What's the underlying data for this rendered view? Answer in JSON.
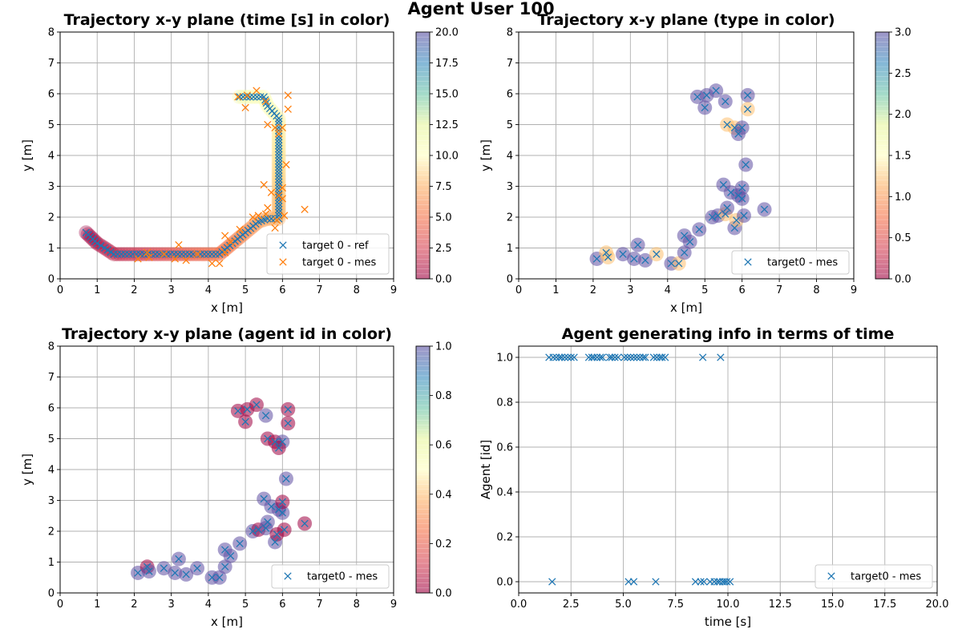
{
  "figure": {
    "suptitle": "Agent User 100"
  },
  "chart_data": [
    {
      "id": "time",
      "type": "scatter",
      "title": "Trajectory x-y plane  (time [s] in color)",
      "xlabel": "x [m]",
      "ylabel": "y [m]",
      "xlim": [
        0,
        9
      ],
      "ylim": [
        0,
        8
      ],
      "xticks": [
        "0",
        "1",
        "2",
        "3",
        "4",
        "5",
        "6",
        "7",
        "8",
        "9"
      ],
      "yticks": [
        "0",
        "1",
        "2",
        "3",
        "4",
        "5",
        "6",
        "7",
        "8"
      ],
      "grid": true,
      "legend": {
        "placement": "lower-right",
        "entries": [
          {
            "label": "target 0 - ref",
            "color": "#1f77b4"
          },
          {
            "label": "target 0 - mes",
            "color": "#ff7f0e"
          }
        ]
      },
      "colorbar": {
        "min": 0,
        "max": 20,
        "ticks": [
          "0.0",
          "2.5",
          "5.0",
          "7.5",
          "10.0",
          "12.5",
          "15.0",
          "17.5",
          "20.0"
        ]
      },
      "ref_path": [
        [
          0.7,
          1.5
        ],
        [
          1.0,
          1.15
        ],
        [
          1.2,
          1.0
        ],
        [
          1.45,
          0.8
        ],
        [
          4.3,
          0.8
        ],
        [
          5.35,
          1.85
        ],
        [
          5.6,
          1.95
        ],
        [
          5.9,
          1.95
        ],
        [
          5.9,
          5.2
        ],
        [
          5.6,
          5.6
        ],
        [
          5.5,
          5.9
        ],
        [
          4.75,
          5.9
        ]
      ],
      "series": [
        {
          "name": "target 0 - ref",
          "color": "#1f77b4"
        },
        {
          "name": "target 0 - mes",
          "color": "#ff7f0e",
          "points": [
            [
              2.1,
              0.65
            ],
            [
              2.35,
              0.85
            ],
            [
              2.4,
              0.7
            ],
            [
              2.8,
              0.8
            ],
            [
              3.1,
              0.65
            ],
            [
              3.2,
              1.1
            ],
            [
              3.4,
              0.6
            ],
            [
              3.7,
              0.8
            ],
            [
              4.1,
              0.5
            ],
            [
              4.3,
              0.5
            ],
            [
              4.45,
              1.4
            ],
            [
              4.45,
              0.85
            ],
            [
              4.6,
              1.2
            ],
            [
              4.85,
              1.6
            ],
            [
              5.2,
              2.0
            ],
            [
              5.35,
              2.05
            ],
            [
              5.5,
              3.05
            ],
            [
              5.55,
              2.1
            ],
            [
              5.6,
              2.3
            ],
            [
              5.7,
              2.8
            ],
            [
              5.8,
              1.65
            ],
            [
              5.85,
              1.9
            ],
            [
              5.9,
              2.7
            ],
            [
              6.0,
              2.6
            ],
            [
              6.0,
              2.95
            ],
            [
              6.05,
              2.05
            ],
            [
              6.1,
              3.7
            ],
            [
              6.6,
              2.25
            ],
            [
              4.8,
              5.9
            ],
            [
              5.0,
              5.55
            ],
            [
              5.05,
              5.95
            ],
            [
              5.3,
              6.1
            ],
            [
              5.6,
              5.0
            ],
            [
              5.8,
              4.9
            ],
            [
              6.0,
              4.9
            ],
            [
              5.9,
              4.7
            ],
            [
              6.15,
              5.95
            ],
            [
              6.15,
              5.5
            ],
            [
              5.55,
              5.75
            ]
          ]
        }
      ]
    },
    {
      "id": "type",
      "type": "scatter",
      "title": "Trajectory x-y plane (type in color)",
      "xlabel": "x [m]",
      "ylabel": "y [m]",
      "xlim": [
        0,
        9
      ],
      "ylim": [
        0,
        8
      ],
      "xticks": [
        "0",
        "1",
        "2",
        "3",
        "4",
        "5",
        "6",
        "7",
        "8",
        "9"
      ],
      "yticks": [
        "0",
        "1",
        "2",
        "3",
        "4",
        "5",
        "6",
        "7",
        "8"
      ],
      "grid": true,
      "legend": {
        "placement": "lower-right",
        "entries": [
          {
            "label": "target0 - mes",
            "color": "#1f77b4"
          }
        ]
      },
      "colorbar": {
        "min": 0,
        "max": 3,
        "ticks": [
          "0.0",
          "0.5",
          "1.0",
          "1.5",
          "2.0",
          "2.5",
          "3.0"
        ]
      },
      "series": [
        {
          "name": "target0 - mes",
          "color": "#1f77b4",
          "points": [
            [
              2.1,
              0.65,
              3
            ],
            [
              2.35,
              0.85,
              1
            ],
            [
              2.4,
              0.7,
              1
            ],
            [
              2.8,
              0.8,
              3
            ],
            [
              3.1,
              0.65,
              3
            ],
            [
              3.2,
              1.1,
              3
            ],
            [
              3.4,
              0.6,
              3
            ],
            [
              3.7,
              0.8,
              1
            ],
            [
              4.1,
              0.5,
              3
            ],
            [
              4.3,
              0.5,
              1
            ],
            [
              4.45,
              1.4,
              3
            ],
            [
              4.45,
              0.85,
              3
            ],
            [
              4.6,
              1.2,
              3
            ],
            [
              4.85,
              1.6,
              3
            ],
            [
              5.2,
              2.0,
              3
            ],
            [
              5.35,
              2.05,
              3
            ],
            [
              5.5,
              3.05,
              3
            ],
            [
              5.55,
              2.1,
              1
            ],
            [
              5.6,
              2.3,
              3
            ],
            [
              5.7,
              2.8,
              3
            ],
            [
              5.8,
              1.65,
              3
            ],
            [
              5.85,
              1.9,
              1
            ],
            [
              5.9,
              2.7,
              3
            ],
            [
              6.0,
              2.6,
              3
            ],
            [
              6.0,
              2.95,
              3
            ],
            [
              6.05,
              2.05,
              3
            ],
            [
              6.1,
              3.7,
              3
            ],
            [
              6.6,
              2.25,
              3
            ],
            [
              4.8,
              5.9,
              3
            ],
            [
              5.0,
              5.55,
              3
            ],
            [
              5.05,
              5.95,
              3
            ],
            [
              5.3,
              6.1,
              3
            ],
            [
              5.6,
              5.0,
              1
            ],
            [
              5.8,
              4.9,
              1
            ],
            [
              6.0,
              4.9,
              3
            ],
            [
              5.9,
              4.7,
              3
            ],
            [
              6.15,
              5.95,
              3
            ],
            [
              6.15,
              5.5,
              1
            ],
            [
              5.55,
              5.75,
              3
            ]
          ]
        }
      ]
    },
    {
      "id": "agent",
      "type": "scatter",
      "title": "Trajectory x-y plane (agent id in color)",
      "xlabel": "x [m]",
      "ylabel": "y [m]",
      "xlim": [
        0,
        9
      ],
      "ylim": [
        0,
        8
      ],
      "xticks": [
        "0",
        "1",
        "2",
        "3",
        "4",
        "5",
        "6",
        "7",
        "8",
        "9"
      ],
      "yticks": [
        "0",
        "1",
        "2",
        "3",
        "4",
        "5",
        "6",
        "7",
        "8"
      ],
      "grid": true,
      "legend": {
        "placement": "lower-right",
        "entries": [
          {
            "label": "target0 - mes",
            "color": "#1f77b4"
          }
        ]
      },
      "colorbar": {
        "min": 0,
        "max": 1,
        "ticks": [
          "0.0",
          "0.2",
          "0.4",
          "0.6",
          "0.8",
          "1.0"
        ]
      },
      "series": [
        {
          "name": "target0 - mes",
          "color": "#1f77b4",
          "points": [
            [
              2.1,
              0.65,
              1
            ],
            [
              2.35,
              0.85,
              0
            ],
            [
              2.4,
              0.7,
              1
            ],
            [
              2.8,
              0.8,
              1
            ],
            [
              3.1,
              0.65,
              1
            ],
            [
              3.2,
              1.1,
              1
            ],
            [
              3.4,
              0.6,
              1
            ],
            [
              3.7,
              0.8,
              1
            ],
            [
              4.1,
              0.5,
              1
            ],
            [
              4.3,
              0.5,
              1
            ],
            [
              4.45,
              1.4,
              1
            ],
            [
              4.45,
              0.85,
              1
            ],
            [
              4.6,
              1.2,
              1
            ],
            [
              4.85,
              1.6,
              1
            ],
            [
              5.2,
              2.0,
              1
            ],
            [
              5.35,
              2.05,
              0
            ],
            [
              5.5,
              3.05,
              1
            ],
            [
              5.55,
              2.1,
              1
            ],
            [
              5.6,
              2.3,
              1
            ],
            [
              5.7,
              2.8,
              1
            ],
            [
              5.8,
              1.65,
              1
            ],
            [
              5.85,
              1.9,
              0
            ],
            [
              5.9,
              2.7,
              1
            ],
            [
              6.0,
              2.6,
              1
            ],
            [
              6.0,
              2.95,
              0
            ],
            [
              6.05,
              2.05,
              0
            ],
            [
              6.1,
              3.7,
              1
            ],
            [
              6.6,
              2.25,
              0
            ],
            [
              4.8,
              5.9,
              0
            ],
            [
              5.0,
              5.55,
              0
            ],
            [
              5.05,
              5.95,
              0
            ],
            [
              5.3,
              6.1,
              0
            ],
            [
              5.6,
              5.0,
              0
            ],
            [
              5.8,
              4.9,
              0
            ],
            [
              6.0,
              4.9,
              1
            ],
            [
              5.9,
              4.7,
              0
            ],
            [
              6.15,
              5.95,
              0
            ],
            [
              6.15,
              5.5,
              0
            ],
            [
              5.55,
              5.75,
              1
            ]
          ]
        }
      ]
    },
    {
      "id": "agent_time",
      "type": "scatter",
      "title": "Agent generating info in terms of time",
      "xlabel": "time [s]",
      "ylabel": "Agent [id]",
      "xlim": [
        0,
        20
      ],
      "ylim": [
        -0.05,
        1.05
      ],
      "xticks": [
        "0.0",
        "2.5",
        "5.0",
        "7.5",
        "10.0",
        "12.5",
        "15.0",
        "17.5",
        "20.0"
      ],
      "yticks": [
        "0.0",
        "0.2",
        "0.4",
        "0.6",
        "0.8",
        "1.0"
      ],
      "grid": true,
      "legend": {
        "placement": "lower-right",
        "entries": [
          {
            "label": "target0 - mes",
            "color": "#1f77b4"
          }
        ]
      },
      "series": [
        {
          "name": "target0 - mes",
          "color": "#1f77b4",
          "points": [
            [
              1.45,
              1
            ],
            [
              1.6,
              0
            ],
            [
              1.65,
              1
            ],
            [
              1.8,
              1
            ],
            [
              1.95,
              1
            ],
            [
              2.05,
              1
            ],
            [
              2.2,
              1
            ],
            [
              2.35,
              1
            ],
            [
              2.5,
              1
            ],
            [
              2.65,
              1
            ],
            [
              3.35,
              1
            ],
            [
              3.5,
              1
            ],
            [
              3.6,
              1
            ],
            [
              3.75,
              1
            ],
            [
              3.9,
              1
            ],
            [
              4.0,
              1
            ],
            [
              4.35,
              1
            ],
            [
              4.45,
              1
            ],
            [
              4.6,
              1
            ],
            [
              4.75,
              1
            ],
            [
              5.05,
              1
            ],
            [
              5.2,
              1
            ],
            [
              5.25,
              0
            ],
            [
              5.35,
              1
            ],
            [
              5.5,
              1
            ],
            [
              5.5,
              0
            ],
            [
              5.65,
              1
            ],
            [
              5.8,
              1
            ],
            [
              5.95,
              1
            ],
            [
              6.05,
              1
            ],
            [
              6.45,
              1
            ],
            [
              6.55,
              0
            ],
            [
              6.6,
              1
            ],
            [
              6.75,
              1
            ],
            [
              6.85,
              1
            ],
            [
              7.0,
              1
            ],
            [
              8.45,
              0
            ],
            [
              8.7,
              0
            ],
            [
              8.8,
              1
            ],
            [
              8.85,
              0
            ],
            [
              9.15,
              0
            ],
            [
              9.35,
              0
            ],
            [
              9.5,
              0
            ],
            [
              9.6,
              0
            ],
            [
              9.65,
              1
            ],
            [
              9.75,
              0
            ],
            [
              9.85,
              0
            ],
            [
              9.95,
              0
            ],
            [
              10.1,
              0
            ]
          ]
        }
      ]
    }
  ],
  "colors": {
    "spectral_stops": [
      "#d53e4f",
      "#fc8d59",
      "#fee08b",
      "#ffffbf",
      "#e6f598",
      "#99d594",
      "#3288bd",
      "#5e4fa2"
    ],
    "grid": "#b0b0b0"
  }
}
